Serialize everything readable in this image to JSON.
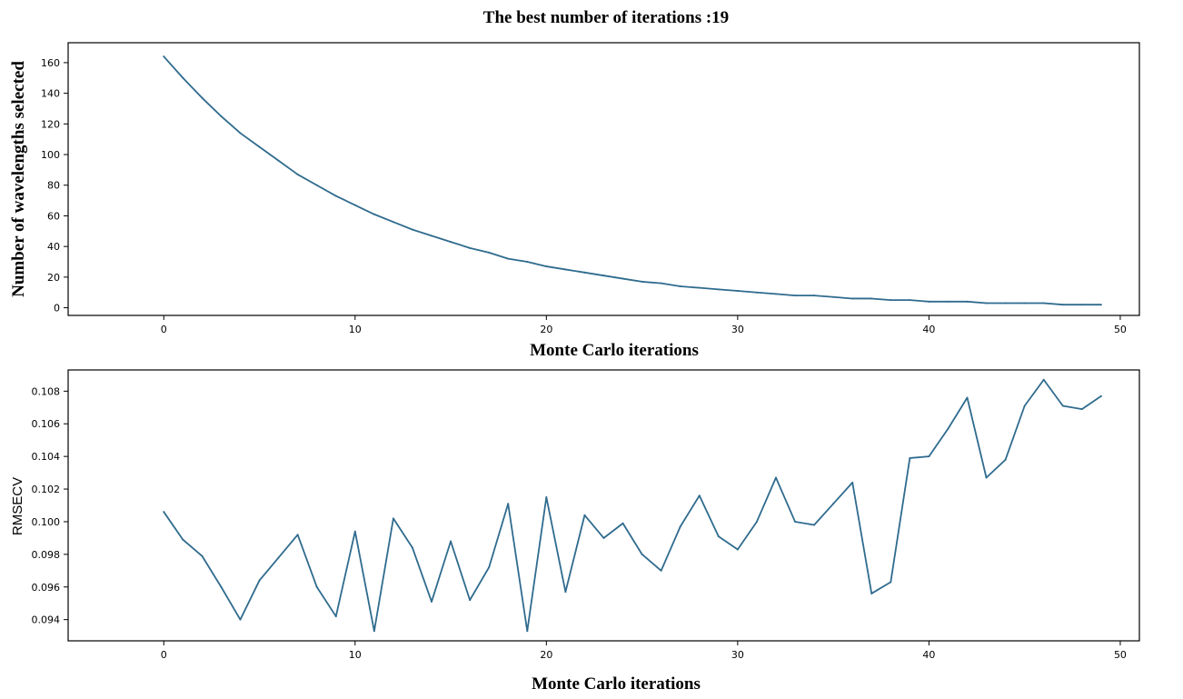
{
  "title": "The best number of iterations :19",
  "colors": {
    "line": "#2f6b8e",
    "axis": "#000000"
  },
  "chart_data": [
    {
      "type": "line",
      "xlabel": "Monte Carlo iterations",
      "ylabel": "Number of wavelengths selected",
      "xlim": [
        -5,
        51
      ],
      "ylim": [
        -5,
        173
      ],
      "xticks": [
        0,
        10,
        20,
        30,
        40,
        50
      ],
      "yticks": [
        0,
        20,
        40,
        60,
        80,
        100,
        120,
        140,
        160
      ],
      "ytick_labels": [
        "0",
        "20",
        "40",
        "60",
        "80",
        "100",
        "120",
        "140",
        "160"
      ],
      "grid": false,
      "series": [
        {
          "name": "wavelengths",
          "x": [
            0,
            1,
            2,
            3,
            4,
            5,
            6,
            7,
            8,
            9,
            10,
            11,
            12,
            13,
            14,
            15,
            16,
            17,
            18,
            19,
            20,
            21,
            22,
            23,
            24,
            25,
            26,
            27,
            28,
            29,
            30,
            31,
            32,
            33,
            34,
            35,
            36,
            37,
            38,
            39,
            40,
            41,
            42,
            43,
            44,
            45,
            46,
            47,
            48,
            49
          ],
          "values": [
            164,
            150,
            137,
            125,
            114,
            105,
            96,
            87,
            80,
            73,
            67,
            61,
            56,
            51,
            47,
            43,
            39,
            36,
            32,
            30,
            27,
            25,
            23,
            21,
            19,
            17,
            16,
            14,
            13,
            12,
            11,
            10,
            9,
            8,
            8,
            7,
            6,
            6,
            5,
            5,
            4,
            4,
            4,
            3,
            3,
            3,
            3,
            2,
            2,
            2
          ]
        }
      ]
    },
    {
      "type": "line",
      "xlabel": "Monte Carlo iterations",
      "ylabel": "RMSECV",
      "xlim": [
        -5,
        51
      ],
      "ylim": [
        0.0927,
        0.1093
      ],
      "xticks": [
        0,
        10,
        20,
        30,
        40,
        50
      ],
      "yticks": [
        0.094,
        0.096,
        0.098,
        0.1,
        0.102,
        0.104,
        0.106,
        0.108
      ],
      "ytick_labels": [
        "0.094",
        "0.096",
        "0.098",
        "0.100",
        "0.102",
        "0.104",
        "0.106",
        "0.108"
      ],
      "grid": false,
      "series": [
        {
          "name": "RMSECV",
          "x": [
            0,
            1,
            2,
            3,
            4,
            5,
            6,
            7,
            8,
            9,
            10,
            11,
            12,
            13,
            14,
            15,
            16,
            17,
            18,
            19,
            20,
            21,
            22,
            23,
            24,
            25,
            26,
            27,
            28,
            29,
            30,
            31,
            32,
            33,
            34,
            35,
            36,
            37,
            38,
            39,
            40,
            41,
            42,
            43,
            44,
            45,
            46,
            47,
            48,
            49
          ],
          "values": [
            0.1006,
            0.0989,
            0.0979,
            0.096,
            0.094,
            0.0964,
            0.0978,
            0.0992,
            0.096,
            0.0942,
            0.0994,
            0.0933,
            0.1002,
            0.0984,
            0.0951,
            0.0988,
            0.0952,
            0.0972,
            0.1011,
            0.0933,
            0.1015,
            0.0957,
            0.1004,
            0.099,
            0.0999,
            0.098,
            0.097,
            0.0997,
            0.1016,
            0.0991,
            0.0983,
            0.1,
            0.1027,
            0.1,
            0.0998,
            0.1011,
            0.1024,
            0.0956,
            0.0963,
            0.1039,
            0.104,
            0.1057,
            0.1076,
            0.1027,
            0.1038,
            0.1071,
            0.1087,
            0.1071,
            0.1069,
            0.1077
          ]
        }
      ]
    }
  ]
}
